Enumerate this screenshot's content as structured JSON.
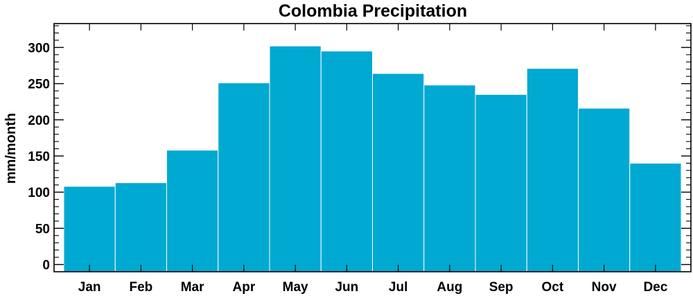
{
  "chart_data": {
    "type": "bar",
    "title": "Colombia Precipitation",
    "xlabel": "",
    "ylabel": "mm/month",
    "categories": [
      "Jan",
      "Feb",
      "Mar",
      "Apr",
      "May",
      "Jun",
      "Jul",
      "Aug",
      "Sep",
      "Oct",
      "Nov",
      "Dec"
    ],
    "values": [
      108,
      113,
      158,
      251,
      302,
      295,
      264,
      248,
      235,
      271,
      216,
      140
    ],
    "ylim": [
      -10,
      333
    ],
    "yticks": [
      0,
      50,
      100,
      150,
      200,
      250,
      300
    ],
    "ytick_labels": [
      "0",
      "50",
      "100",
      "150",
      "200",
      "250",
      "300"
    ],
    "bar_color": "#00a9d1",
    "bar_edge_color": "#ffffff",
    "grid": false,
    "legend": "none"
  }
}
